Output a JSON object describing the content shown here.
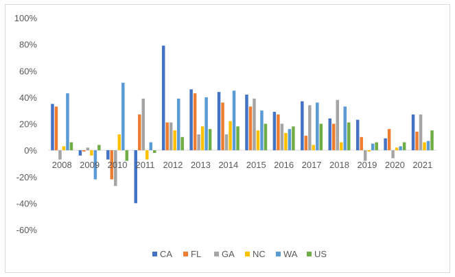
{
  "chart_data": {
    "type": "bar",
    "title": "",
    "xlabel": "",
    "ylabel": "",
    "ylim": [
      -60,
      100
    ],
    "ytick_step": 20,
    "ytick_labels": [
      "100%",
      "80%",
      "60%",
      "40%",
      "20%",
      "0%",
      "-20%",
      "-40%",
      "-60%"
    ],
    "grid": false,
    "legend_position": "bottom",
    "categories": [
      "2008",
      "2009",
      "2010",
      "2011",
      "2012",
      "2013",
      "2014",
      "2015",
      "2016",
      "2017",
      "2018",
      "2019",
      "2020",
      "2021"
    ],
    "series": [
      {
        "name": "CA",
        "color": "#4472c4",
        "values": [
          35,
          -4,
          -7,
          -40,
          79,
          46,
          44,
          42,
          29,
          37,
          24,
          23,
          9,
          27
        ]
      },
      {
        "name": "FL",
        "color": "#ed7d31",
        "values": [
          33,
          -1,
          -22,
          27,
          21,
          43,
          36,
          33,
          27,
          11,
          20,
          10,
          16,
          14
        ]
      },
      {
        "name": "GA",
        "color": "#a5a5a5",
        "values": [
          -7,
          2,
          -27,
          39,
          21,
          12,
          12,
          39,
          20,
          34,
          38,
          -8,
          -6,
          27
        ]
      },
      {
        "name": "NC",
        "color": "#ffc000",
        "values": [
          3,
          -4,
          12,
          -7,
          15,
          18,
          22,
          15,
          13,
          4,
          6,
          -1,
          2,
          6
        ]
      },
      {
        "name": "WA",
        "color": "#5b9bd5",
        "values": [
          43,
          -22,
          51,
          6,
          39,
          40,
          45,
          30,
          16,
          36,
          33,
          5,
          3,
          7
        ]
      },
      {
        "name": "US",
        "color": "#70ad47",
        "values": [
          6,
          4,
          -8,
          -2,
          10,
          16,
          18,
          20,
          18,
          20,
          21,
          6,
          6,
          15
        ]
      }
    ]
  }
}
